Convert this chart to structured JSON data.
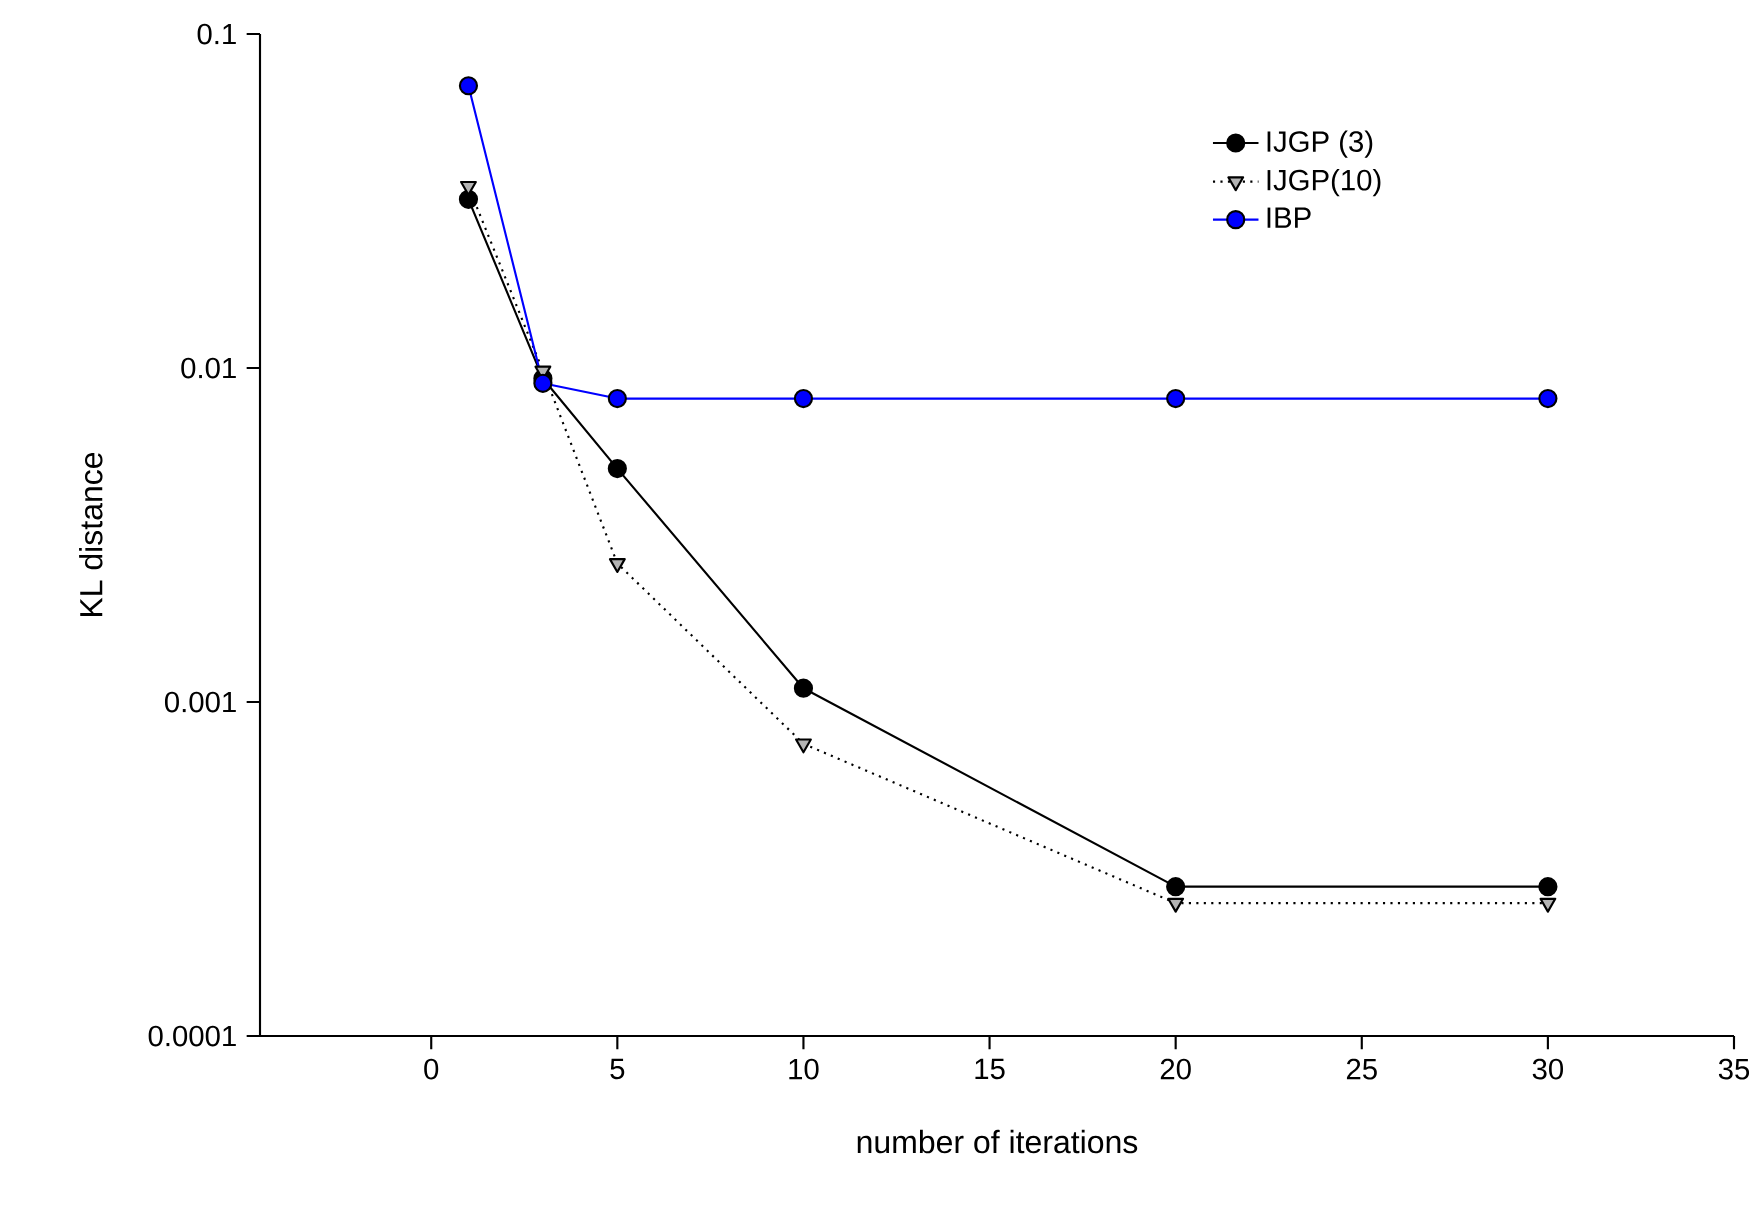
{
  "chart_data": {
    "type": "line",
    "xlabel": "number of iterations",
    "ylabel": "KL distance",
    "x": [
      1,
      3,
      5,
      10,
      20,
      30
    ],
    "series": [
      {
        "name": "IJGP (3)",
        "color": "#000000",
        "marker": "circle",
        "line_style": "solid",
        "values": [
          0.032,
          0.0093,
          0.005,
          0.0011,
          0.00028,
          0.00028
        ]
      },
      {
        "name": "IJGP(10)",
        "color": "#b4b4b4",
        "marker": "triangle",
        "line_style": "dotted",
        "values": [
          0.035,
          0.0098,
          0.0026,
          0.00075,
          0.00025,
          0.00025
        ]
      },
      {
        "name": "IBP",
        "color": "#0000ff",
        "marker": "circle",
        "line_style": "solid",
        "values": [
          0.07,
          0.009,
          0.0081,
          0.0081,
          0.0081,
          0.0081
        ]
      }
    ],
    "log": "y",
    "legend": "top right",
    "grid": false,
    "xlim": [
      -4.6,
      35
    ],
    "xticks": [
      0,
      5,
      10,
      15,
      20,
      25,
      30,
      35
    ],
    "ylim": [
      0.0001,
      0.1
    ],
    "yticks": [
      0.0001,
      0.001,
      0.01,
      0.1
    ]
  }
}
